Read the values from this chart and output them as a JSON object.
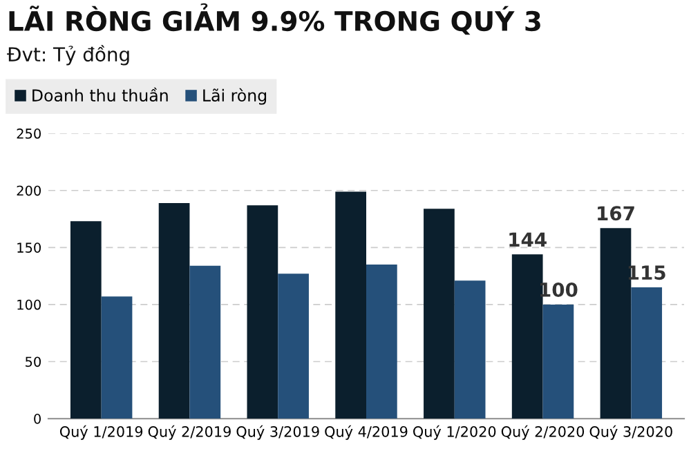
{
  "chart_data": {
    "type": "bar",
    "title": "LÃI RÒNG GIẢM 9.9% TRONG QUÝ 3",
    "subtitle": "Đvt: Tỷ đồng",
    "categories": [
      "Quý 1/2019",
      "Quý 2/2019",
      "Quý 3/2019",
      "Quý 4/2019",
      "Quý 1/2020",
      "Quý 2/2020",
      "Quý 3/2020"
    ],
    "series": [
      {
        "name": "Doanh thu thuần",
        "color": "#0b1f2d",
        "values": [
          173,
          189,
          187,
          199,
          184,
          144,
          167
        ],
        "value_labels": [
          null,
          null,
          null,
          null,
          null,
          "144",
          "167"
        ]
      },
      {
        "name": "Lãi ròng",
        "color": "#25507a",
        "values": [
          107,
          134,
          127,
          135,
          121,
          100,
          115
        ],
        "value_labels": [
          null,
          null,
          null,
          null,
          null,
          "100",
          "115"
        ]
      }
    ],
    "ylim": [
      0,
      250
    ],
    "yticks": [
      0,
      50,
      100,
      150,
      200,
      250
    ],
    "grid": "y",
    "legend": "top left"
  }
}
